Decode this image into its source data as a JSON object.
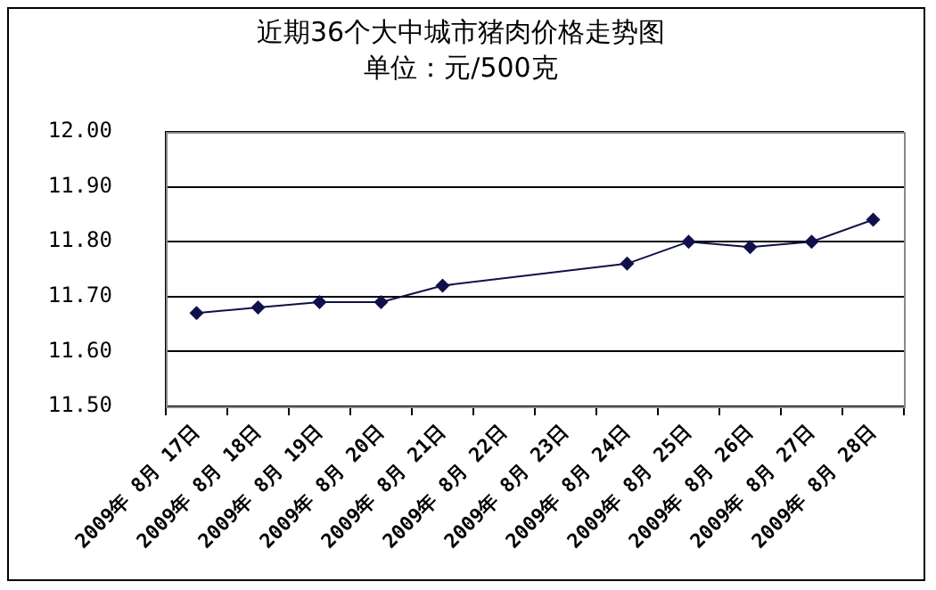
{
  "chart_data": {
    "type": "line",
    "title": "近期36个大中城市猪肉价格走势图",
    "subtitle": "单位：元/500克",
    "categories": [
      "2009年 8月 17日",
      "2009年 8月 18日",
      "2009年 8月 19日",
      "2009年 8月 20日",
      "2009年 8月 21日",
      "2009年 8月 22日",
      "2009年 8月 23日",
      "2009年 8月 24日",
      "2009年 8月 25日",
      "2009年 8月 26日",
      "2009年 8月 27日",
      "2009年 8月 28日"
    ],
    "series": [
      {
        "color": "#10104a",
        "values": [
          11.67,
          11.68,
          11.69,
          11.69,
          11.72,
          null,
          null,
          11.76,
          11.8,
          11.79,
          11.8,
          11.84
        ]
      }
    ],
    "ylim": [
      11.5,
      12.0
    ],
    "yticks": [
      {
        "value": 11.5,
        "label": "11.50"
      },
      {
        "value": 11.6,
        "label": "11.60"
      },
      {
        "value": 11.7,
        "label": "11.70"
      },
      {
        "value": 11.8,
        "label": "11.80"
      },
      {
        "value": 11.9,
        "label": "11.90"
      },
      {
        "value": 12.0,
        "label": "12.00"
      }
    ],
    "grid": "y",
    "legend": false,
    "marker": "diamond",
    "line_style": "solid"
  }
}
